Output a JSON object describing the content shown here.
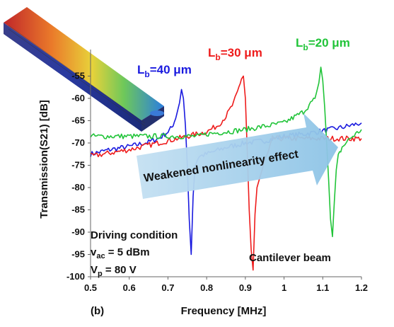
{
  "panel_label": "(b)",
  "chart_data": {
    "type": "line",
    "xlabel": "Frequency [MHz]",
    "ylabel": "Transmission(S21) [dB]",
    "xlim": [
      0.5,
      1.2
    ],
    "ylim": [
      -100,
      -50
    ],
    "xticks": [
      0.5,
      0.6,
      0.7,
      0.8,
      0.9,
      1,
      1.1,
      1.2
    ],
    "yticks": [
      -55,
      -60,
      -65,
      -70,
      -75,
      -80,
      -85,
      -90,
      -95,
      -100
    ],
    "grid": false,
    "series": [
      {
        "name": "Lb=40 μm",
        "label_main": "L",
        "label_sub": "b",
        "label_rest": "=40 μm",
        "color": "#1a1adf",
        "x": [
          0.5,
          0.55,
          0.6,
          0.65,
          0.68,
          0.7,
          0.71,
          0.72,
          0.73,
          0.735,
          0.74,
          0.745,
          0.75,
          0.755,
          0.76,
          0.765,
          0.77,
          0.78,
          0.8,
          0.85,
          0.9,
          0.95,
          1.0,
          1.05,
          1.1,
          1.15,
          1.2
        ],
        "y": [
          -72.5,
          -71.5,
          -70.8,
          -69.8,
          -68.8,
          -67.5,
          -66.5,
          -64.5,
          -61,
          -58,
          -60,
          -66,
          -75,
          -87,
          -95,
          -82,
          -75,
          -73,
          -72.5,
          -71,
          -70,
          -69.5,
          -68.5,
          -68,
          -67.3,
          -66.5,
          -65.5
        ]
      },
      {
        "name": "Lb=30 μm",
        "label_main": "L",
        "label_sub": "b",
        "label_rest": "=30 μm",
        "color": "#ee1c1c",
        "x": [
          0.5,
          0.6,
          0.7,
          0.75,
          0.8,
          0.83,
          0.85,
          0.87,
          0.88,
          0.89,
          0.895,
          0.9,
          0.905,
          0.91,
          0.915,
          0.92,
          0.925,
          0.93,
          0.94,
          0.95,
          0.96,
          0.97,
          1.0,
          1.05,
          1.1,
          1.15,
          1.2
        ],
        "y": [
          -73,
          -71.5,
          -69.5,
          -68.5,
          -67.5,
          -66,
          -64,
          -61,
          -58.5,
          -55.5,
          -55,
          -60,
          -72,
          -85,
          -94,
          -98.5,
          -86,
          -80,
          -77,
          -74,
          -72,
          -69,
          -69,
          -69,
          -69,
          -69,
          -69
        ]
      },
      {
        "name": "Lb=20 μm",
        "label_main": "L",
        "label_sub": "b",
        "label_rest": "=20 μm",
        "color": "#21c439",
        "x": [
          0.5,
          0.6,
          0.7,
          0.78,
          0.8,
          0.9,
          1.0,
          1.05,
          1.08,
          1.09,
          1.095,
          1.1,
          1.105,
          1.11,
          1.115,
          1.12,
          1.125,
          1.13,
          1.135,
          1.14,
          1.15,
          1.17,
          1.2
        ],
        "y": [
          -68.5,
          -68.5,
          -68.5,
          -68.5,
          -68,
          -67,
          -65.5,
          -63,
          -60,
          -56.5,
          -53,
          -56,
          -62,
          -70,
          -78,
          -87,
          -91,
          -83,
          -76,
          -73,
          -71,
          -69,
          -67
        ]
      }
    ],
    "annotations": {
      "driving_title": "Driving condition",
      "vac_main": "v",
      "vac_sub": "ac",
      "vac_rest": " = 5 dBm",
      "vp_main": "V",
      "vp_sub": "p",
      "vp_rest": " = 80 V",
      "cantilever": "Cantilever beam",
      "arrow_text": "Weakened nonlinearity effect"
    }
  }
}
